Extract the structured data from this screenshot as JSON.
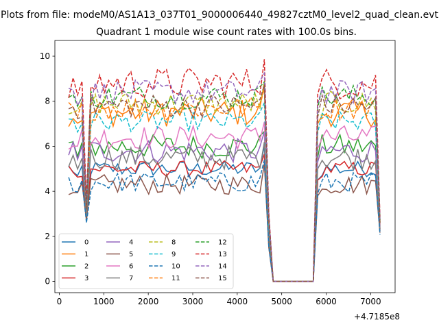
{
  "figure": {
    "suptitle": "Plots from file: modeM0/AS1A13_037T01_9000006440_49827cztM0_level2_quad_clean.evt",
    "title": "Quadrant 1 module wise count rates with 100.0s bins.",
    "x_offset_label": "+4.7185e8"
  },
  "colors": {
    "c0": "#1f77b4",
    "c1": "#ff7f0e",
    "c2": "#2ca02c",
    "c3": "#d62728",
    "c4": "#9467bd",
    "c5": "#8c564b",
    "c6": "#e377c2",
    "c7": "#7f7f7f",
    "c8": "#bcbd22",
    "c9": "#17becf"
  },
  "chart_data": {
    "type": "line",
    "xlim": [
      -100,
      7550
    ],
    "ylim": [
      -0.5,
      10.7
    ],
    "xticks": [
      0,
      1000,
      2000,
      3000,
      4000,
      5000,
      6000,
      7000
    ],
    "xtick_labels": [
      "0",
      "1000",
      "2000",
      "3000",
      "4000",
      "5000",
      "6000",
      "7000"
    ],
    "yticks": [
      0,
      2,
      4,
      6,
      8,
      10
    ],
    "ytick_labels": [
      "0",
      "2",
      "4",
      "6",
      "8",
      "10"
    ],
    "x": [
      210,
      310,
      410,
      510,
      610,
      710,
      810,
      910,
      1010,
      1110,
      1210,
      1310,
      1410,
      1510,
      1610,
      1710,
      1810,
      1910,
      2010,
      2110,
      2210,
      2310,
      2410,
      2510,
      2610,
      2710,
      2810,
      2910,
      3010,
      3110,
      3210,
      3310,
      3410,
      3510,
      3610,
      3710,
      3810,
      3910,
      4010,
      4110,
      4210,
      4310,
      4410,
      4510,
      4610,
      4710,
      4810,
      4910,
      5010,
      5110,
      5210,
      5310,
      5410,
      5510,
      5610,
      5710,
      5810,
      5910,
      6010,
      6110,
      6210,
      6310,
      6410,
      6510,
      6610,
      6710,
      6810,
      6910,
      7010,
      7110,
      7210
    ],
    "series": [
      {
        "name": "0",
        "style": "solid",
        "color": "#1f77b4",
        "base": 5.0,
        "amp": 0.2,
        "dip": 2.8
      },
      {
        "name": "1",
        "style": "solid",
        "color": "#ff7f0e",
        "base": 7.5,
        "amp": 0.35,
        "dip": 3.2
      },
      {
        "name": "2",
        "style": "solid",
        "color": "#2ca02c",
        "base": 6.0,
        "amp": 0.3,
        "dip": 3.1
      },
      {
        "name": "3",
        "style": "solid",
        "color": "#d62728",
        "base": 5.0,
        "amp": 0.2,
        "dip": 2.9
      },
      {
        "name": "4",
        "style": "solid",
        "color": "#9467bd",
        "base": 5.8,
        "amp": 0.3,
        "dip": 3.0
      },
      {
        "name": "5",
        "style": "solid",
        "color": "#8c564b",
        "base": 4.3,
        "amp": 0.25,
        "dip": 2.7
      },
      {
        "name": "6",
        "style": "solid",
        "color": "#e377c2",
        "base": 6.4,
        "amp": 0.3,
        "dip": 3.1
      },
      {
        "name": "7",
        "style": "solid",
        "color": "#7f7f7f",
        "base": 5.5,
        "amp": 0.3,
        "dip": 2.9
      },
      {
        "name": "8",
        "style": "dashed",
        "color": "#bcbd22",
        "base": 7.9,
        "amp": 0.3,
        "dip": 3.3
      },
      {
        "name": "9",
        "style": "dashed",
        "color": "#17becf",
        "base": 7.1,
        "amp": 0.25,
        "dip": 3.2
      },
      {
        "name": "10",
        "style": "dashed",
        "color": "#1f77b4",
        "base": 4.4,
        "amp": 0.25,
        "dip": 2.6
      },
      {
        "name": "11",
        "style": "dashed",
        "color": "#ff7f0e",
        "base": 7.7,
        "amp": 0.3,
        "dip": 3.3
      },
      {
        "name": "12",
        "style": "dashed",
        "color": "#2ca02c",
        "base": 8.2,
        "amp": 0.3,
        "dip": 3.4
      },
      {
        "name": "13",
        "style": "dashed",
        "color": "#d62728",
        "base": 8.8,
        "amp": 0.4,
        "dip": 3.6
      },
      {
        "name": "14",
        "style": "dashed",
        "color": "#9467bd",
        "base": 8.4,
        "amp": 0.3,
        "dip": 3.4
      },
      {
        "name": "15",
        "style": "dashed",
        "color": "#8c564b",
        "base": 7.8,
        "amp": 0.3,
        "dip": 3.2
      }
    ],
    "gap": {
      "start": 4810,
      "end": 5710,
      "value": 0
    },
    "legend": {
      "location": "lower-left",
      "columns": 4
    }
  }
}
